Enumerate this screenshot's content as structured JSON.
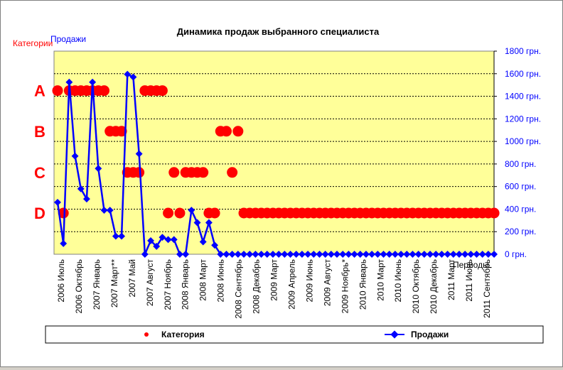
{
  "chart_data": {
    "type": "line",
    "title": "Динамика продаж выбранного специалиста",
    "left_axis_title": "Категории",
    "right_axis_title": "Продажи",
    "x_axis_title": "Периоды",
    "category_ticks": [
      "A",
      "B",
      "C",
      "D"
    ],
    "y_ticks": [
      "1800 грн.",
      "1600 грн.",
      "1400 грн.",
      "1200 грн.",
      "1000 грн.",
      "800 грн.",
      "600 грн.",
      "400 грн.",
      "200 грн.",
      "0 грн."
    ],
    "ylim": [
      0,
      1800
    ],
    "x_tick_labels": [
      "2006 Июль",
      "2006 Октябрь",
      "2007 Январь",
      "2007 Март**",
      "2007 Май",
      "2007 Август",
      "2007 Ноябрь",
      "2008 Январь",
      "2008 Март",
      "2008 Июнь",
      "2008 Сентябрь",
      "2008 Декабрь",
      "2009 Март",
      "2009 Апрель",
      "2009 Июнь",
      "2009 Август",
      "2009 Ноябрь*",
      "2010 Январь",
      "2010 Март",
      "2010 Июнь",
      "2010 Октябрь",
      "2010 Декабрь",
      "2011 Март",
      "2011 Июнь",
      "2011 Сентябрь"
    ],
    "legend": {
      "placement": "bottom",
      "items": [
        "Категория",
        "Продажи"
      ]
    },
    "series": [
      {
        "name": "Категория",
        "color": "#ff0000",
        "categories": [
          "A",
          "D",
          "A",
          "A",
          "A",
          "A",
          "A",
          "A",
          "A",
          "B",
          "B",
          "B",
          "C",
          "C",
          "C",
          "A",
          "A",
          "A",
          "A",
          "D",
          "C",
          "D",
          "C",
          "C",
          "C",
          "C",
          "D",
          "D",
          "B",
          "B",
          "C",
          "B",
          "D",
          "D",
          "D",
          "D",
          "D",
          "D",
          "D",
          "D",
          "D",
          "D",
          "D",
          "D",
          "D",
          "D",
          "D",
          "D",
          "D",
          "D",
          "D",
          "D",
          "D",
          "D",
          "D",
          "D",
          "D",
          "D",
          "D",
          "D",
          "D",
          "D",
          "D",
          "D",
          "D",
          "D",
          "D",
          "D",
          "D",
          "D",
          "D",
          "D",
          "D",
          "D",
          "D",
          "D"
        ]
      },
      {
        "name": "Продажи",
        "color": "#0000ff",
        "values": [
          460,
          95,
          1525,
          870,
          580,
          490,
          1525,
          760,
          390,
          390,
          160,
          160,
          1595,
          1570,
          890,
          0,
          120,
          70,
          150,
          130,
          130,
          0,
          0,
          390,
          280,
          110,
          280,
          80,
          0,
          0,
          0,
          0,
          0,
          0,
          0,
          0,
          0,
          0,
          0,
          0,
          0,
          0,
          0,
          0,
          0,
          0,
          0,
          0,
          0,
          0,
          0,
          0,
          0,
          0,
          0,
          0,
          0,
          0,
          0,
          0,
          0,
          0,
          0,
          0,
          0,
          0,
          0,
          0,
          0,
          0,
          0,
          0,
          0,
          0,
          0,
          0
        ]
      }
    ]
  }
}
